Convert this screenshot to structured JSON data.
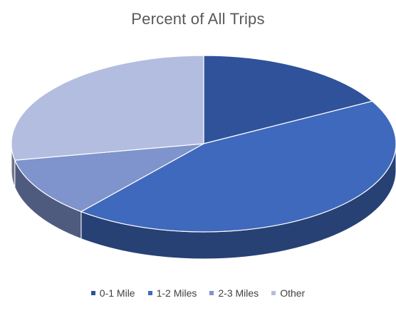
{
  "chart_data": {
    "type": "pie",
    "title": "Percent of All Trips",
    "categories": [
      "0-1 Mile",
      "1-2 Miles",
      "2-3 Miles",
      "Other"
    ],
    "values": [
      17,
      44,
      11,
      28
    ],
    "colors": [
      "#2F529A",
      "#3F69BC",
      "#7F93CC",
      "#B3BDE0"
    ],
    "legend_position": "bottom",
    "style": "3d-pie"
  }
}
